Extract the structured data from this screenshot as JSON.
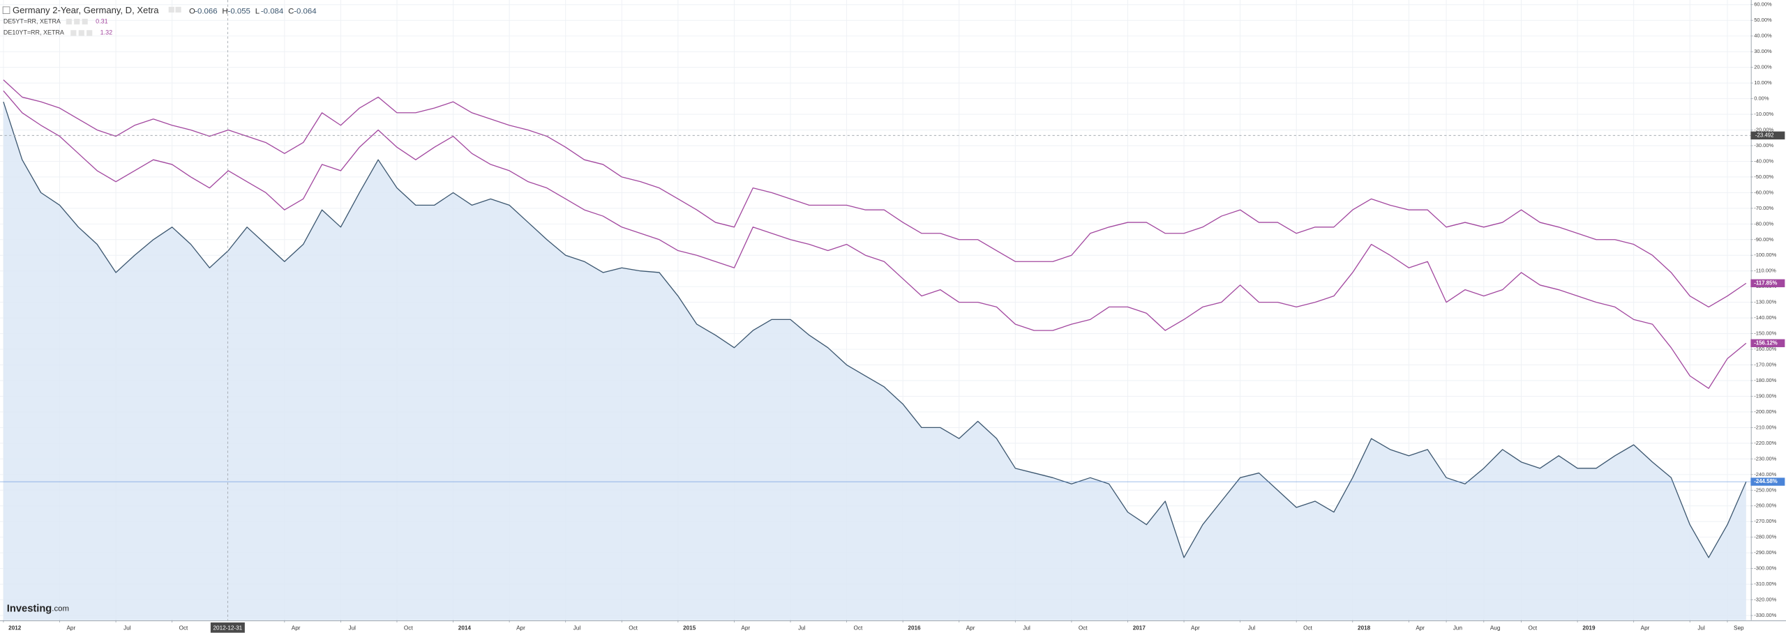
{
  "chart_data": {
    "type": "line",
    "x": [
      "2012-01",
      "2012-02",
      "2012-03",
      "2012-04",
      "2012-05",
      "2012-06",
      "2012-07",
      "2012-08",
      "2012-09",
      "2012-10",
      "2012-11",
      "2012-12",
      "2013-01",
      "2013-02",
      "2013-03",
      "2013-04",
      "2013-05",
      "2013-06",
      "2013-07",
      "2013-08",
      "2013-09",
      "2013-10",
      "2013-11",
      "2013-12",
      "2014-01",
      "2014-02",
      "2014-03",
      "2014-04",
      "2014-05",
      "2014-06",
      "2014-07",
      "2014-08",
      "2014-09",
      "2014-10",
      "2014-11",
      "2014-12",
      "2015-01",
      "2015-02",
      "2015-03",
      "2015-04",
      "2015-05",
      "2015-06",
      "2015-07",
      "2015-08",
      "2015-09",
      "2015-10",
      "2015-11",
      "2015-12",
      "2016-01",
      "2016-02",
      "2016-03",
      "2016-04",
      "2016-05",
      "2016-06",
      "2016-07",
      "2016-08",
      "2016-09",
      "2016-10",
      "2016-11",
      "2016-12",
      "2017-01",
      "2017-02",
      "2017-03",
      "2017-04",
      "2017-05",
      "2017-06",
      "2017-07",
      "2017-08",
      "2017-09",
      "2017-10",
      "2017-11",
      "2017-12",
      "2018-01",
      "2018-02",
      "2018-03",
      "2018-04",
      "2018-05",
      "2018-06",
      "2018-07",
      "2018-08",
      "2018-09",
      "2018-10",
      "2018-11",
      "2018-12",
      "2019-01",
      "2019-02",
      "2019-03",
      "2019-04",
      "2019-05",
      "2019-06",
      "2019-07",
      "2019-08",
      "2019-09",
      "2019-10"
    ],
    "ylim": [
      -333,
      63
    ],
    "yticks": [
      {
        "value": 60,
        "label": "60.00%"
      },
      {
        "value": 50,
        "label": "50.00%"
      },
      {
        "value": 40,
        "label": "40.00%"
      },
      {
        "value": 30,
        "label": "30.00%"
      },
      {
        "value": 20,
        "label": "20.00%"
      },
      {
        "value": 10,
        "label": "10.00%"
      },
      {
        "value": 0,
        "label": "0.00%"
      },
      {
        "value": -10,
        "label": "-10.00%"
      },
      {
        "value": -20,
        "label": "-20.00%"
      },
      {
        "value": -30,
        "label": "-30.00%"
      },
      {
        "value": -40,
        "label": "-40.00%"
      },
      {
        "value": -50,
        "label": "-50.00%"
      },
      {
        "value": -60,
        "label": "-60.00%"
      },
      {
        "value": -70,
        "label": "-70.00%"
      },
      {
        "value": -80,
        "label": "-80.00%"
      },
      {
        "value": -90,
        "label": "-90.00%"
      },
      {
        "value": -100,
        "label": "-100.00%"
      },
      {
        "value": -110,
        "label": "-110.00%"
      },
      {
        "value": -120,
        "label": "-120.00%"
      },
      {
        "value": -130,
        "label": "-130.00%"
      },
      {
        "value": -140,
        "label": "-140.00%"
      },
      {
        "value": -150,
        "label": "-150.00%"
      },
      {
        "value": -160,
        "label": "-160.00%"
      },
      {
        "value": -170,
        "label": "-170.00%"
      },
      {
        "value": -180,
        "label": "-180.00%"
      },
      {
        "value": -190,
        "label": "-190.00%"
      },
      {
        "value": -200,
        "label": "-200.00%"
      },
      {
        "value": -210,
        "label": "-210.00%"
      },
      {
        "value": -220,
        "label": "-220.00%"
      },
      {
        "value": -230,
        "label": "-230.00%"
      },
      {
        "value": -240,
        "label": "-240.00%"
      },
      {
        "value": -250,
        "label": "-250.00%"
      },
      {
        "value": -260,
        "label": "-260.00%"
      },
      {
        "value": -270,
        "label": "-270.00%"
      },
      {
        "value": -280,
        "label": "-280.00%"
      },
      {
        "value": -290,
        "label": "-290.00%"
      },
      {
        "value": -300,
        "label": "-300.00%"
      },
      {
        "value": -310,
        "label": "-310.00%"
      },
      {
        "value": -320,
        "label": "-320.00%"
      },
      {
        "value": -330,
        "label": "-330.00%"
      }
    ],
    "xticks": [
      {
        "value": "2012-01",
        "label": "2012"
      },
      {
        "value": "2012-04",
        "label": "Apr"
      },
      {
        "value": "2012-07",
        "label": "Jul"
      },
      {
        "value": "2012-10",
        "label": "Oct"
      },
      {
        "value": "2013-04",
        "label": "Apr"
      },
      {
        "value": "2013-07",
        "label": "Jul"
      },
      {
        "value": "2013-10",
        "label": "Oct"
      },
      {
        "value": "2014-01",
        "label": "2014"
      },
      {
        "value": "2014-04",
        "label": "Apr"
      },
      {
        "value": "2014-07",
        "label": "Jul"
      },
      {
        "value": "2014-10",
        "label": "Oct"
      },
      {
        "value": "2015-01",
        "label": "2015"
      },
      {
        "value": "2015-04",
        "label": "Apr"
      },
      {
        "value": "2015-07",
        "label": "Jul"
      },
      {
        "value": "2015-10",
        "label": "Oct"
      },
      {
        "value": "2016-01",
        "label": "2016"
      },
      {
        "value": "2016-04",
        "label": "Apr"
      },
      {
        "value": "2016-07",
        "label": "Jul"
      },
      {
        "value": "2016-10",
        "label": "Oct"
      },
      {
        "value": "2017-01",
        "label": "2017"
      },
      {
        "value": "2017-04",
        "label": "Apr"
      },
      {
        "value": "2017-07",
        "label": "Jul"
      },
      {
        "value": "2017-10",
        "label": "Oct"
      },
      {
        "value": "2018-01",
        "label": "2018"
      },
      {
        "value": "2018-04",
        "label": "Apr"
      },
      {
        "value": "2018-06",
        "label": "Jun"
      },
      {
        "value": "2018-08",
        "label": "Aug"
      },
      {
        "value": "2018-10",
        "label": "Oct"
      },
      {
        "value": "2019-01",
        "label": "2019"
      },
      {
        "value": "2019-04",
        "label": "Apr"
      },
      {
        "value": "2019-07",
        "label": "Jul"
      },
      {
        "value": "2019-09",
        "label": "Sep"
      }
    ],
    "grid": true,
    "series": [
      {
        "name": "Germany 2-Year, Germany, D, Xetra",
        "color": "#3b566f",
        "fill": "#dce8f6",
        "badge_color": "#4a84d8",
        "values": [
          -2,
          -39,
          -60,
          -68,
          -82,
          -93,
          -111,
          -100,
          -90,
          -82,
          -93,
          -108,
          -97,
          -82,
          -93,
          -104,
          -93,
          -71,
          -82,
          -60,
          -39,
          -57,
          -68,
          -68,
          -60,
          -68,
          -64,
          -68,
          -79,
          -90,
          -100,
          -104,
          -111,
          -108,
          -110,
          -111,
          -126,
          -144,
          -151,
          -159,
          -148,
          -141,
          -141,
          -151,
          -159,
          -170,
          -177,
          -184,
          -195,
          -210,
          -210,
          -217,
          -206,
          -217,
          -236,
          -239,
          -242,
          -246,
          -242,
          -246,
          -264,
          -272,
          -257,
          -293,
          -272,
          -257,
          -242,
          -239,
          -250,
          -261,
          -257,
          -264,
          -242,
          -217,
          -224,
          -228,
          -224,
          -242,
          -246,
          -236,
          -224,
          -232,
          -236,
          -228,
          -236,
          -236,
          -228,
          -221,
          -232,
          -242,
          -272,
          -293,
          -272,
          -244.58
        ],
        "last_label": "-244.58%"
      },
      {
        "name": "DE5YT=RR, XETRA",
        "color": "#a2479f",
        "legend_value": 0.31,
        "values": [
          5,
          -9,
          -17,
          -24,
          -35,
          -46,
          -53,
          -46,
          -39,
          -42,
          -50,
          -57,
          -46,
          -53,
          -60,
          -71,
          -64,
          -42,
          -46,
          -31,
          -20,
          -31,
          -39,
          -31,
          -24,
          -35,
          -42,
          -46,
          -53,
          -57,
          -64,
          -71,
          -75,
          -82,
          -86,
          -90,
          -97,
          -100,
          -104,
          -108,
          -82,
          -86,
          -90,
          -93,
          -97,
          -93,
          -100,
          -104,
          -115,
          -126,
          -122,
          -130,
          -130,
          -133,
          -144,
          -148,
          -148,
          -144,
          -141,
          -133,
          -133,
          -137,
          -148,
          -141,
          -133,
          -130,
          -119,
          -130,
          -130,
          -133,
          -130,
          -126,
          -111,
          -93,
          -100,
          -108,
          -104,
          -130,
          -122,
          -126,
          -122,
          -111,
          -119,
          -122,
          -126,
          -130,
          -133,
          -141,
          -144,
          -159,
          -177,
          -185,
          -166,
          -156.12
        ],
        "last_label": "-156.12%"
      },
      {
        "name": "DE10YT=RR, XETRA",
        "color": "#a2479f",
        "legend_value": 1.32,
        "values": [
          12,
          1,
          -2,
          -6,
          -13,
          -20,
          -24,
          -17,
          -13,
          -17,
          -20,
          -24,
          -20,
          -24,
          -28,
          -35,
          -28,
          -9,
          -17,
          -6,
          1,
          -9,
          -9,
          -6,
          -2,
          -9,
          -13,
          -17,
          -20,
          -24,
          -31,
          -39,
          -42,
          -50,
          -53,
          -57,
          -64,
          -71,
          -79,
          -82,
          -57,
          -60,
          -64,
          -68,
          -68,
          -68,
          -71,
          -71,
          -79,
          -86,
          -86,
          -90,
          -90,
          -97,
          -104,
          -104,
          -104,
          -100,
          -86,
          -82,
          -79,
          -79,
          -86,
          -86,
          -82,
          -75,
          -71,
          -79,
          -79,
          -86,
          -82,
          -82,
          -71,
          -64,
          -68,
          -71,
          -71,
          -82,
          -79,
          -82,
          -79,
          -71,
          -79,
          -82,
          -86,
          -90,
          -90,
          -93,
          -100,
          -111,
          -126,
          -133,
          -126,
          -117.85
        ],
        "last_label": "-117.85%"
      }
    ],
    "ohlc": [
      {
        "label": "O",
        "value": -0.066
      },
      {
        "label": "H",
        "value": -0.055
      },
      {
        "label": "L",
        "value": -0.084
      },
      {
        "label": "C",
        "value": -0.064
      }
    ],
    "crosshair": {
      "x": "2012-12-31",
      "y": -23.492
    },
    "brand": "Investing",
    "brand_suffix": ".com"
  }
}
